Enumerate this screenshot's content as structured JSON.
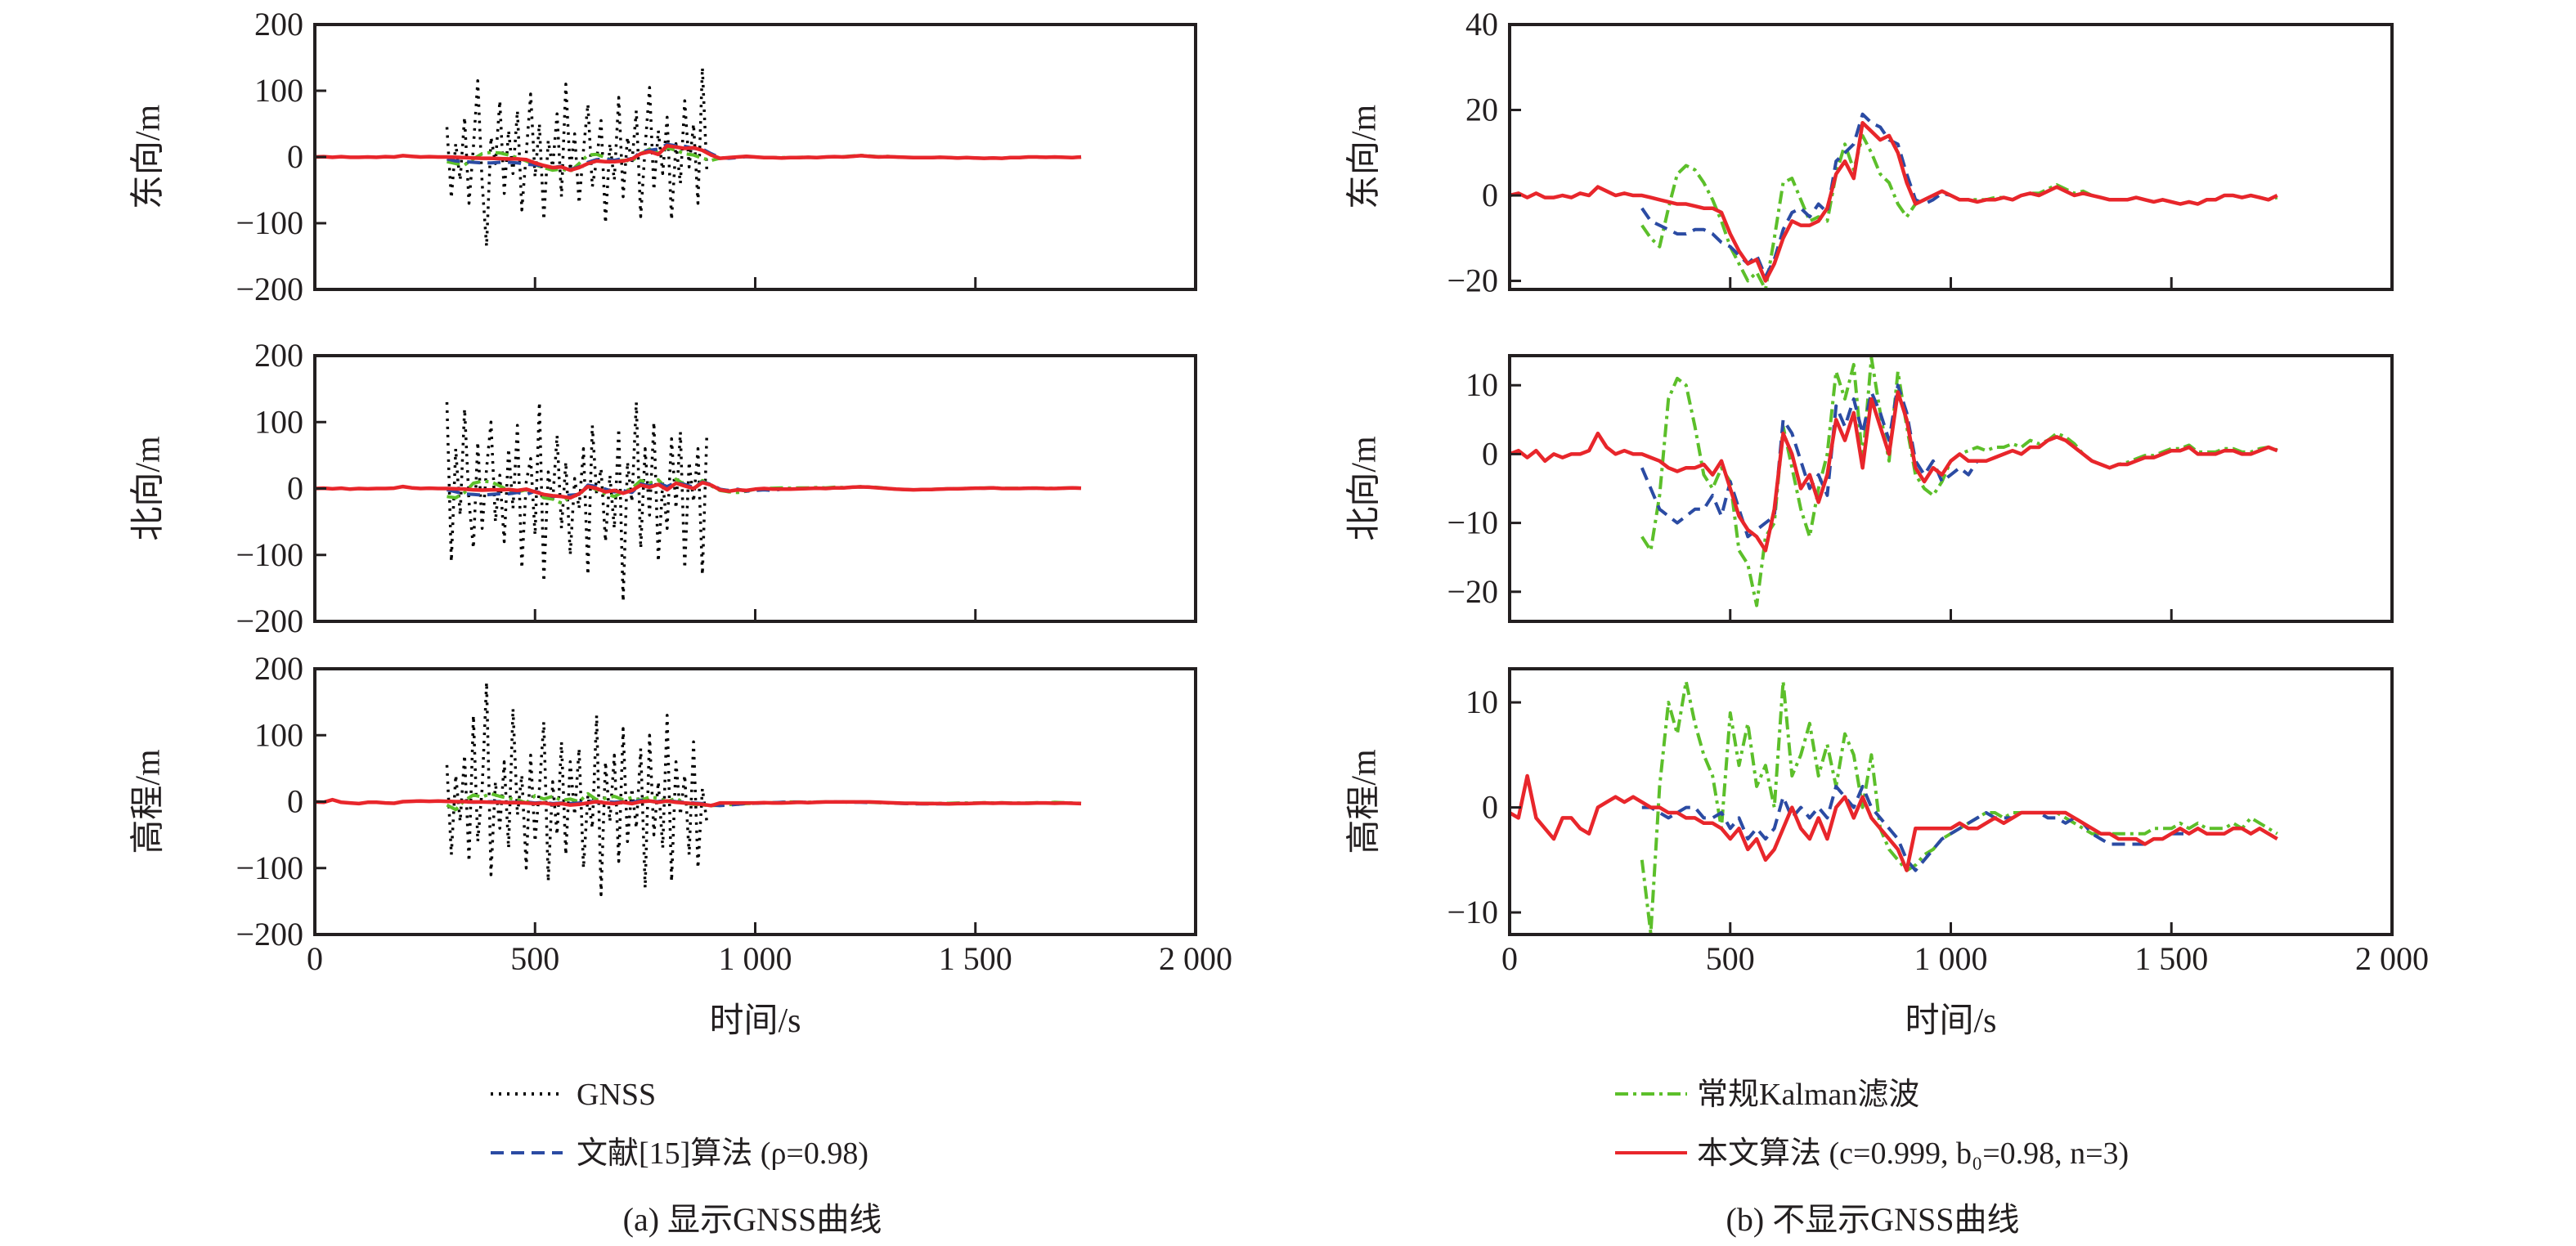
{
  "chart_data": {
    "type": "line",
    "xlabel": "时间/s",
    "xlim": [
      0,
      2000
    ],
    "xticks": [
      0,
      500,
      1000,
      1500,
      2000
    ],
    "xtick_labels": [
      "0",
      "500",
      "1 000",
      "1 500",
      "2 000"
    ],
    "grid": false,
    "colors": {
      "gnss": "#000000",
      "ref15": "#2b4ba3",
      "kalman": "#5cbf2a",
      "proposed": "#e8262b"
    },
    "legend": {
      "left": [
        {
          "key": "gnss",
          "label": "GNSS",
          "style": "dotted"
        },
        {
          "key": "ref15",
          "label": "文献[15]算法 (ρ=0.98)",
          "style": "dashed"
        }
      ],
      "right": [
        {
          "key": "kalman",
          "label": "常规Kalman滤波",
          "style": "dash-dot"
        },
        {
          "key": "proposed",
          "label": "本文算法 (c=0.999, b₀=0.98, n=3)",
          "style": "solid"
        }
      ]
    },
    "panels": [
      {
        "caption": "(a) 显示GNSS曲线",
        "show_gnss": true
      },
      {
        "caption": "(b) 不显示GNSS曲线",
        "show_gnss": false
      }
    ],
    "x": [
      0,
      20,
      40,
      60,
      80,
      100,
      120,
      140,
      160,
      180,
      200,
      220,
      240,
      260,
      280,
      300,
      320,
      340,
      360,
      380,
      400,
      420,
      440,
      460,
      480,
      500,
      520,
      540,
      560,
      580,
      600,
      620,
      640,
      660,
      680,
      700,
      720,
      740,
      760,
      780,
      800,
      820,
      840,
      860,
      880,
      900,
      920,
      940,
      960,
      980,
      1000,
      1020,
      1040,
      1060,
      1080,
      1100,
      1120,
      1140,
      1160,
      1180,
      1200,
      1220,
      1240,
      1260,
      1280,
      1300,
      1320,
      1340,
      1360,
      1380,
      1400,
      1420,
      1440,
      1460,
      1480,
      1500,
      1520,
      1540,
      1560,
      1580,
      1600,
      1620,
      1640,
      1660,
      1680,
      1700,
      1720,
      1740
    ],
    "gnss_x_range": [
      300,
      890
    ],
    "components": [
      {
        "ylabel": "东向/m",
        "left_ylim": [
          -200,
          200
        ],
        "left_yticks": [
          -200,
          -100,
          0,
          100,
          200
        ],
        "right_ylim": [
          -22,
          40
        ],
        "right_yticks": [
          -20,
          0,
          20,
          40
        ],
        "gnss": [
          45,
          -62,
          20,
          -35,
          60,
          -70,
          15,
          115,
          -40,
          -135,
          30,
          -10,
          85,
          -55,
          40,
          -25,
          70,
          -80,
          5,
          95,
          -30,
          50,
          -95,
          25,
          -15,
          65,
          -60,
          110,
          -20,
          35,
          -70,
          10,
          80,
          -45,
          -5,
          55,
          -100,
          20,
          -35,
          90,
          -60,
          30,
          -10,
          70,
          -90,
          15,
          105,
          -50,
          40,
          -25,
          60,
          -95,
          20,
          -40,
          85,
          -15,
          50,
          -70,
          135,
          -20
        ],
        "proposed": [
          0,
          0.5,
          -0.5,
          0.5,
          -0.5,
          -0.5,
          0,
          -0.5,
          0.5,
          0,
          2,
          1,
          0,
          0.5,
          0,
          0,
          -0.5,
          -1,
          -1.5,
          -2,
          -2,
          -2.5,
          -3,
          -3,
          -4,
          -9,
          -13,
          -16,
          -15,
          -20,
          -16,
          -10,
          -6,
          -7,
          -7,
          -6,
          -3,
          5,
          8,
          4,
          17,
          15,
          13,
          14,
          10,
          3,
          -2,
          -1,
          0,
          1,
          0,
          -1,
          -1,
          -1.5,
          -1,
          -1,
          -0.5,
          -1,
          0,
          0.5,
          0,
          1,
          2,
          1,
          0,
          0.5,
          0,
          -0.5,
          -1,
          -1,
          -1,
          -0.5,
          -1,
          -1.5,
          -1,
          -1.5,
          -2,
          -1.5,
          -2,
          -1,
          -1,
          0,
          0,
          -0.5,
          0,
          -0.5,
          -1,
          0
        ],
        "ref15": [
          null,
          null,
          null,
          null,
          null,
          null,
          null,
          null,
          null,
          null,
          null,
          null,
          null,
          null,
          null,
          -3,
          -6,
          -7,
          -8,
          -9,
          -9,
          -8,
          -8,
          -9,
          -11,
          -12,
          -14,
          -16,
          -14,
          -19,
          -15,
          -8,
          -4,
          -3,
          -5,
          -2,
          -4,
          8,
          10,
          12,
          19,
          17,
          16,
          13,
          12,
          5,
          -1,
          -2,
          -1,
          0.5,
          0,
          -1,
          -1,
          -1.5,
          -1,
          -1,
          -0.5,
          -1,
          0,
          0.5,
          0,
          1,
          2,
          1,
          0,
          0.5,
          0,
          -0.5,
          -1,
          -1,
          -1,
          -0.5,
          -1,
          -1.5,
          -1,
          -1.5,
          -2,
          -1.5,
          -2,
          -1,
          -1,
          0,
          0,
          -0.5,
          0,
          -0.5,
          -1,
          0
        ],
        "kalman": [
          null,
          null,
          null,
          null,
          null,
          null,
          null,
          null,
          null,
          null,
          null,
          null,
          null,
          null,
          null,
          -7,
          -10,
          -12,
          -3,
          5,
          7,
          6,
          3,
          -1,
          -6,
          -12,
          -16,
          -20,
          -18,
          -22,
          -10,
          3,
          4,
          -1,
          -6,
          -5,
          -6,
          5,
          12,
          6,
          14,
          10,
          5,
          3,
          -2,
          -5,
          -2,
          -1,
          0,
          1,
          0,
          -1,
          -1,
          -1,
          -1,
          -0.5,
          -0.5,
          -1,
          0,
          0.5,
          0.5,
          1.5,
          2.5,
          1.5,
          0.5,
          1,
          0,
          -0.5,
          -1,
          -1,
          -1,
          -0.5,
          -1,
          -1.5,
          -1,
          -1.5,
          -2,
          -1.5,
          -2,
          -1,
          -1,
          0,
          0,
          -0.5,
          0,
          -0.5,
          -1,
          -0.5
        ]
      },
      {
        "ylabel": "北向/m",
        "left_ylim": [
          -200,
          200
        ],
        "left_yticks": [
          -200,
          -100,
          0,
          100,
          200
        ],
        "right_ylim": [
          -24.3,
          14.3
        ],
        "right_yticks": [
          -20,
          -10,
          0,
          10
        ],
        "gnss": [
          130,
          -110,
          60,
          -40,
          120,
          -20,
          -90,
          70,
          -60,
          30,
          100,
          -50,
          20,
          -80,
          60,
          -30,
          95,
          -120,
          10,
          45,
          -70,
          130,
          -140,
          25,
          -20,
          80,
          -60,
          40,
          -100,
          15,
          -30,
          60,
          -130,
          95,
          -10,
          30,
          -80,
          20,
          -60,
          90,
          -170,
          40,
          -20,
          130,
          -90,
          60,
          -40,
          100,
          -110,
          10,
          -60,
          75,
          -30,
          85,
          -120,
          40,
          -20,
          60,
          -130,
          80
        ],
        "proposed": [
          0,
          0.5,
          -0.5,
          0.5,
          -1,
          0,
          -0.5,
          0,
          0,
          0.5,
          3,
          1,
          0,
          0.5,
          0,
          0,
          -0.5,
          -1,
          -2,
          -2.5,
          -2,
          -2,
          -1.5,
          -3,
          -1,
          -5,
          -9,
          -11,
          -12,
          -14,
          -8,
          3,
          0,
          -5,
          -3,
          -7,
          -3,
          5,
          2,
          6,
          -2,
          8,
          4,
          0,
          9,
          5,
          -2,
          -4,
          -2,
          -3,
          -1,
          0,
          -1,
          -1,
          -1,
          -0.5,
          0,
          0.5,
          0,
          1,
          1,
          2,
          2.5,
          2,
          1,
          0,
          -1,
          -1.5,
          -2,
          -1.5,
          -1.5,
          -1,
          -0.5,
          -0.5,
          0,
          0.5,
          0.5,
          1,
          0,
          0,
          0,
          0.5,
          0.5,
          0,
          0,
          0.5,
          1,
          0.5
        ],
        "ref15": [
          null,
          null,
          null,
          null,
          null,
          null,
          null,
          null,
          null,
          null,
          null,
          null,
          null,
          null,
          null,
          -2,
          -5,
          -8,
          -9,
          -10,
          -9,
          -8,
          -8,
          -6,
          -9,
          -4,
          -8,
          -12,
          -11,
          -10,
          -9,
          5,
          3,
          -1,
          -5,
          -3,
          -6,
          7,
          4,
          8,
          3,
          9,
          6,
          2,
          10,
          6,
          -1,
          -3,
          -1,
          -4,
          -3,
          -2,
          -3,
          -1,
          -1,
          -0.5,
          0,
          0.5,
          0,
          1,
          1,
          2,
          2.5,
          2,
          1,
          0,
          -1,
          -1.5,
          -2,
          -1.5,
          -1.5,
          -1,
          -0.5,
          -0.5,
          0,
          0.5,
          0.5,
          1,
          0,
          0,
          0,
          0.5,
          0.5,
          0,
          0,
          0.5,
          1,
          0.5
        ],
        "kalman": [
          null,
          null,
          null,
          null,
          null,
          null,
          null,
          null,
          null,
          null,
          null,
          null,
          null,
          null,
          null,
          -12,
          -14,
          -6,
          8,
          11,
          10,
          4,
          -3,
          -5,
          -2,
          -4,
          -14,
          -16,
          -22,
          -12,
          -10,
          4,
          -2,
          -8,
          -12,
          -5,
          0,
          12,
          8,
          13,
          -1,
          14,
          6,
          -1,
          12,
          4,
          -3,
          -5,
          -6,
          -4,
          -1,
          0,
          0.5,
          1,
          0.5,
          1,
          1,
          1.5,
          1,
          2,
          1.5,
          2,
          3,
          2.5,
          1.5,
          0,
          -1,
          -1.5,
          -2,
          -1.5,
          -1.2,
          -0.7,
          -0.2,
          -0.2,
          0.3,
          0.8,
          0.8,
          1.3,
          0.3,
          0.3,
          0.3,
          0.8,
          0.8,
          0.3,
          0.3,
          0.8,
          1,
          0.6
        ]
      },
      {
        "ylabel": "高程/m",
        "left_ylim": [
          -200,
          200
        ],
        "left_yticks": [
          -200,
          -100,
          0,
          100,
          200
        ],
        "right_ylim": [
          -12.1,
          13.2
        ],
        "right_yticks": [
          -10,
          0,
          10
        ],
        "gnss": [
          55,
          -80,
          40,
          -30,
          70,
          -90,
          130,
          -60,
          20,
          180,
          -110,
          30,
          -40,
          60,
          -70,
          140,
          -20,
          40,
          -100,
          70,
          -60,
          20,
          120,
          -120,
          30,
          -50,
          90,
          -80,
          60,
          -20,
          80,
          -100,
          10,
          -40,
          130,
          -140,
          60,
          -30,
          70,
          -90,
          110,
          -60,
          20,
          -40,
          80,
          -130,
          100,
          -50,
          30,
          -70,
          130,
          -120,
          60,
          -20,
          40,
          -80,
          90,
          -100,
          20,
          -30
        ],
        "proposed": [
          -0.5,
          -1,
          3,
          -1,
          -2,
          -3,
          -1,
          -1,
          -2,
          -2.5,
          0,
          0.5,
          1,
          0.5,
          1,
          0.5,
          0,
          0,
          -0.5,
          -0.5,
          -1,
          -1,
          -1.5,
          -1.5,
          -2,
          -3,
          -2,
          -4,
          -3,
          -5,
          -4,
          -2,
          0,
          -2,
          -3,
          -1,
          -3,
          0,
          1,
          -1,
          1,
          -1,
          -2,
          -3,
          -4,
          -6,
          -2,
          -2,
          -2,
          -2,
          -2,
          -1.5,
          -2,
          -2,
          -1.5,
          -1,
          -1.5,
          -1,
          -0.5,
          -0.5,
          -0.5,
          -0.5,
          -0.5,
          -0.5,
          -1,
          -1.5,
          -2,
          -2.5,
          -2.5,
          -3,
          -3,
          -3,
          -3.5,
          -3,
          -3,
          -2.5,
          -2,
          -2.5,
          -2,
          -2.5,
          -2.5,
          -2.5,
          -2,
          -2,
          -2.5,
          -2,
          -2.5,
          -3
        ],
        "ref15": [
          null,
          null,
          null,
          null,
          null,
          null,
          null,
          null,
          null,
          null,
          null,
          null,
          null,
          null,
          null,
          0,
          0,
          -0.5,
          -1,
          -0.5,
          0,
          0,
          -1,
          -1,
          -0.5,
          -2,
          -1,
          -3,
          -2,
          -3,
          -2,
          1,
          -1,
          0,
          -1,
          0,
          -1,
          2,
          1,
          0,
          2,
          0,
          -1,
          -2,
          -3,
          -5,
          -6,
          -5,
          -4,
          -3,
          -2.5,
          -2,
          -1.5,
          -1,
          -0.5,
          -1,
          -1,
          -1,
          -0.5,
          -0.5,
          -0.5,
          -1,
          -1,
          -1.5,
          -1,
          -1.5,
          -2.5,
          -3,
          -3.5,
          -3.5,
          -3.5,
          -3.5,
          -3.5,
          -3,
          -3,
          -2.5,
          -2.5,
          -2.5,
          -2,
          -2.5,
          -2.5,
          -2.5,
          -2,
          -2,
          -2.5,
          -2,
          -2.5,
          -3
        ],
        "kalman": [
          null,
          null,
          null,
          null,
          null,
          null,
          null,
          null,
          null,
          null,
          null,
          null,
          null,
          null,
          null,
          -5,
          -12,
          2,
          10,
          7,
          12,
          8,
          5,
          3,
          -2,
          9,
          4,
          8,
          2,
          4,
          0,
          12,
          3,
          5,
          8,
          3,
          6,
          2,
          7,
          5,
          0,
          5,
          -2,
          -4,
          -5,
          -6,
          -5.5,
          -4.5,
          -4,
          -3,
          -2.5,
          -2,
          -1.5,
          -1,
          -0.5,
          -0.5,
          -1,
          -0.5,
          -0.5,
          -0.5,
          -0.5,
          -0.5,
          -0.5,
          -1,
          -1.5,
          -2,
          -2.5,
          -2.5,
          -2.5,
          -2.5,
          -2.5,
          -2.5,
          -2.5,
          -2,
          -2,
          -2,
          -1.5,
          -2,
          -1.5,
          -2,
          -2,
          -2,
          -1.5,
          -2,
          -1,
          -1.5,
          -2,
          -2.5
        ]
      }
    ]
  }
}
